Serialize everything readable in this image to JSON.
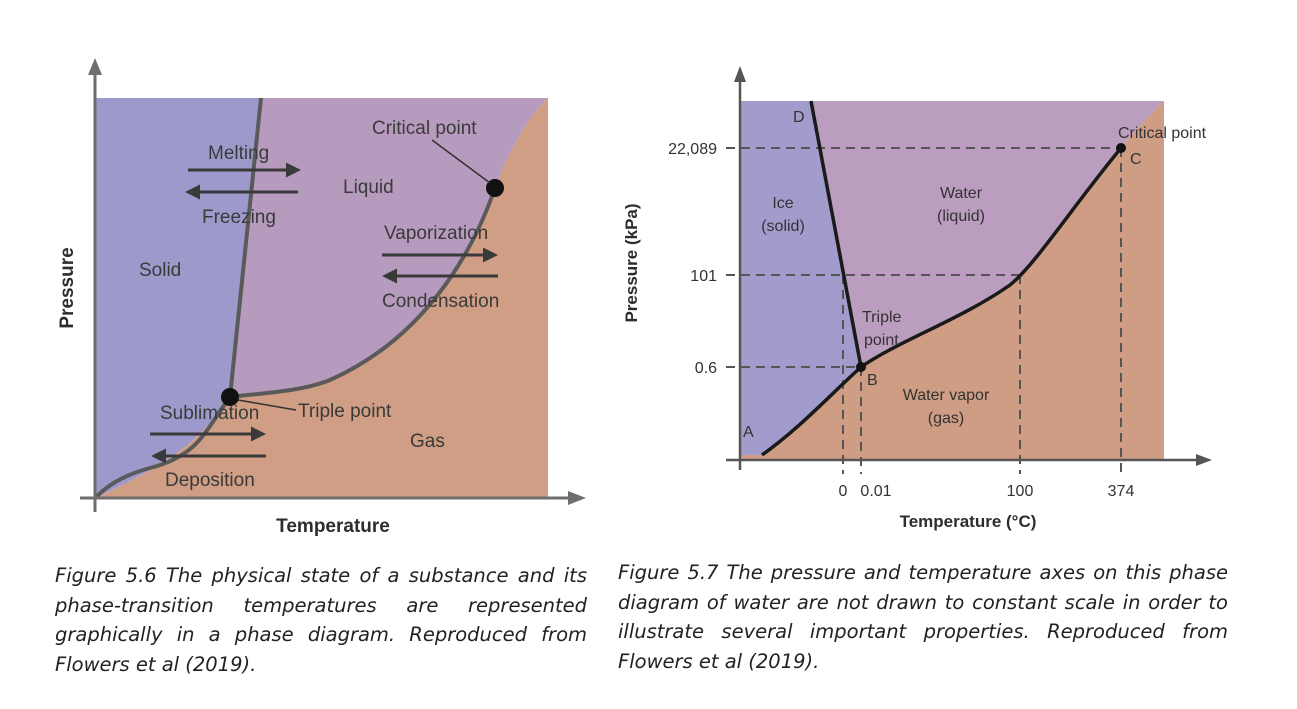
{
  "figure_left": {
    "labels": {
      "melting": "Melting",
      "freezing": "Freezing",
      "critical_point": "Critical point",
      "liquid": "Liquid",
      "vaporization": "Vaporization",
      "condensation": "Condensation",
      "solid": "Solid",
      "sublimation": "Sublimation",
      "deposition": "Deposition",
      "triple_point": "Triple point",
      "gas": "Gas"
    },
    "axes": {
      "x_title": "Temperature",
      "y_title": "Pressure"
    },
    "colors": {
      "solid": "#9d9acb",
      "liquid": "#b79bbe",
      "gas": "#cf9e85",
      "curve": "#5a5a5a"
    }
  },
  "figure_right": {
    "points": {
      "A": "A",
      "B": "B",
      "C": "C",
      "D": "D"
    },
    "labels": {
      "ice": "Ice",
      "ice_sub": "(solid)",
      "water": "Water",
      "water_sub": "(liquid)",
      "critical_point": "Critical point",
      "triple": "Triple",
      "triple_sub": "point",
      "water_vapor": "Water vapor",
      "water_vapor_sub": "(gas)"
    },
    "y_ticks": [
      "22,089",
      "101",
      "0.6"
    ],
    "x_ticks": [
      "0",
      "0.01",
      "100",
      "374"
    ],
    "axes": {
      "x_title": "Temperature (°C)",
      "y_title": "Pressure (kPa)"
    },
    "colors": {
      "solid": "#a19ccc",
      "liquid": "#bb9dbf",
      "gas": "#cf9d83",
      "curve": "#1a1a1a"
    }
  },
  "captions": {
    "left": "Figure 5.6 The physical state of a substance and its phase-transition temperatures are represented graphically in a phase diagram. Reproduced from Flowers et al (2019).",
    "right": "Figure 5.7 The pressure and temperature axes on this phase diagram of water are not drawn to constant scale in order to illustrate several important properties. Reproduced from Flowers et al (2019)."
  }
}
